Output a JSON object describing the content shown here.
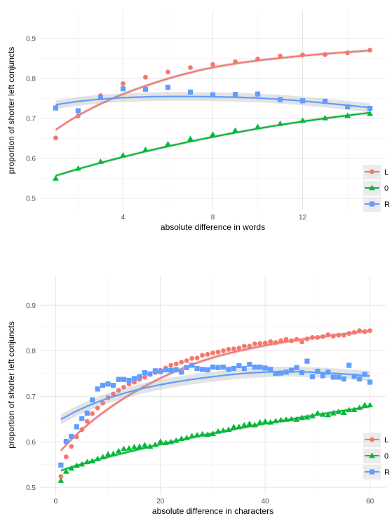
{
  "chart_data": [
    {
      "type": "line",
      "title": "",
      "xlabel": "absolute difference in words",
      "ylabel": "proportion of shorter left conjuncts",
      "xlim": [
        0.3,
        15.7
      ],
      "ylim": [
        0.47,
        0.97
      ],
      "xticks": [
        4,
        8,
        12
      ],
      "yticks": [
        0.5,
        0.6,
        0.7,
        0.8,
        0.9
      ],
      "grid": true,
      "legend_position": "bottom-right",
      "series": [
        {
          "name": "L",
          "color": "#f8766d",
          "marker": "circle",
          "x": [
            1,
            2,
            3,
            4,
            5,
            6,
            7,
            8,
            9,
            10,
            11,
            12,
            13,
            14,
            15
          ],
          "values": [
            0.651,
            0.706,
            0.757,
            0.787,
            0.803,
            0.816,
            0.827,
            0.835,
            0.842,
            0.849,
            0.856,
            0.859,
            0.86,
            0.864,
            0.871
          ]
        },
        {
          "name": "0",
          "color": "#00ba38",
          "marker": "triangle",
          "x": [
            1,
            2,
            3,
            4,
            5,
            6,
            7,
            8,
            9,
            10,
            11,
            12,
            13,
            14,
            15
          ],
          "values": [
            0.55,
            0.575,
            0.592,
            0.608,
            0.622,
            0.636,
            0.649,
            0.66,
            0.67,
            0.679,
            0.687,
            0.695,
            0.701,
            0.707,
            0.712
          ]
        },
        {
          "name": "R",
          "color": "#619cff",
          "marker": "square",
          "x": [
            1,
            2,
            3,
            4,
            5,
            6,
            7,
            8,
            9,
            10,
            11,
            12,
            13,
            14,
            15
          ],
          "values": [
            0.726,
            0.719,
            0.752,
            0.774,
            0.773,
            0.778,
            0.766,
            0.759,
            0.76,
            0.761,
            0.747,
            0.744,
            0.743,
            0.729,
            0.725
          ]
        }
      ]
    },
    {
      "type": "line",
      "title": "",
      "xlabel": "absolute difference in characters",
      "ylabel": "proportion of shorter left conjuncts",
      "xlim": [
        -3,
        63
      ],
      "ylim": [
        0.485,
        0.965
      ],
      "xticks": [
        0,
        20,
        40,
        60
      ],
      "yticks": [
        0.5,
        0.6,
        0.7,
        0.8,
        0.9
      ],
      "grid": true,
      "legend_position": "bottom-right",
      "series": [
        {
          "name": "L",
          "color": "#f8766d",
          "marker": "circle",
          "x": [
            1,
            2,
            3,
            4,
            5,
            6,
            7,
            8,
            9,
            10,
            11,
            12,
            13,
            14,
            15,
            16,
            17,
            18,
            19,
            20,
            21,
            22,
            23,
            24,
            25,
            26,
            27,
            28,
            29,
            30,
            31,
            32,
            33,
            34,
            35,
            36,
            37,
            38,
            39,
            40,
            41,
            42,
            43,
            44,
            45,
            46,
            47,
            48,
            49,
            50,
            51,
            52,
            53,
            54,
            55,
            56,
            57,
            58,
            59,
            60
          ],
          "values": [
            0.524,
            0.567,
            0.59,
            0.611,
            0.627,
            0.645,
            0.662,
            0.674,
            0.685,
            0.697,
            0.705,
            0.713,
            0.72,
            0.727,
            0.731,
            0.737,
            0.742,
            0.748,
            0.752,
            0.757,
            0.762,
            0.768,
            0.771,
            0.775,
            0.778,
            0.783,
            0.784,
            0.79,
            0.792,
            0.795,
            0.797,
            0.8,
            0.803,
            0.804,
            0.806,
            0.81,
            0.81,
            0.815,
            0.816,
            0.817,
            0.82,
            0.818,
            0.822,
            0.825,
            0.822,
            0.825,
            0.819,
            0.826,
            0.829,
            0.829,
            0.831,
            0.835,
            0.832,
            0.834,
            0.834,
            0.838,
            0.84,
            0.844,
            0.842,
            0.844
          ]
        },
        {
          "name": "0",
          "color": "#00ba38",
          "marker": "triangle",
          "x": [
            1,
            2,
            3,
            4,
            5,
            6,
            7,
            8,
            9,
            10,
            11,
            12,
            13,
            14,
            15,
            16,
            17,
            18,
            19,
            20,
            21,
            22,
            23,
            24,
            25,
            26,
            27,
            28,
            29,
            30,
            31,
            32,
            33,
            34,
            35,
            36,
            37,
            38,
            39,
            40,
            41,
            42,
            43,
            44,
            45,
            46,
            47,
            48,
            49,
            50,
            51,
            52,
            53,
            54,
            55,
            56,
            57,
            58,
            59,
            60
          ],
          "values": [
            0.515,
            0.535,
            0.542,
            0.548,
            0.551,
            0.556,
            0.558,
            0.563,
            0.567,
            0.573,
            0.574,
            0.58,
            0.585,
            0.586,
            0.589,
            0.59,
            0.593,
            0.59,
            0.594,
            0.601,
            0.598,
            0.6,
            0.603,
            0.607,
            0.609,
            0.613,
            0.615,
            0.617,
            0.616,
            0.618,
            0.623,
            0.625,
            0.627,
            0.633,
            0.633,
            0.637,
            0.64,
            0.637,
            0.643,
            0.645,
            0.643,
            0.646,
            0.648,
            0.649,
            0.65,
            0.649,
            0.653,
            0.654,
            0.657,
            0.663,
            0.66,
            0.659,
            0.663,
            0.666,
            0.664,
            0.67,
            0.67,
            0.675,
            0.681,
            0.681
          ]
        },
        {
          "name": "R",
          "color": "#619cff",
          "marker": "square",
          "x": [
            1,
            2,
            3,
            4,
            5,
            6,
            7,
            8,
            9,
            10,
            11,
            12,
            13,
            14,
            15,
            16,
            17,
            18,
            19,
            20,
            21,
            22,
            23,
            24,
            25,
            26,
            27,
            28,
            29,
            30,
            31,
            32,
            33,
            34,
            35,
            36,
            37,
            38,
            39,
            40,
            41,
            42,
            43,
            44,
            45,
            46,
            47,
            48,
            49,
            50,
            51,
            52,
            53,
            54,
            55,
            56,
            57,
            58,
            59,
            60
          ],
          "values": [
            0.549,
            0.601,
            0.612,
            0.633,
            0.651,
            0.663,
            0.692,
            0.716,
            0.724,
            0.727,
            0.724,
            0.737,
            0.737,
            0.735,
            0.739,
            0.743,
            0.752,
            0.749,
            0.756,
            0.754,
            0.758,
            0.757,
            0.758,
            0.753,
            0.763,
            0.768,
            0.761,
            0.759,
            0.758,
            0.764,
            0.763,
            0.764,
            0.759,
            0.761,
            0.767,
            0.761,
            0.77,
            0.764,
            0.764,
            0.762,
            0.759,
            0.75,
            0.751,
            0.753,
            0.757,
            0.763,
            0.752,
            0.777,
            0.743,
            0.755,
            0.745,
            0.753,
            0.742,
            0.742,
            0.738,
            0.768,
            0.744,
            0.738,
            0.748,
            0.731
          ]
        }
      ]
    }
  ]
}
